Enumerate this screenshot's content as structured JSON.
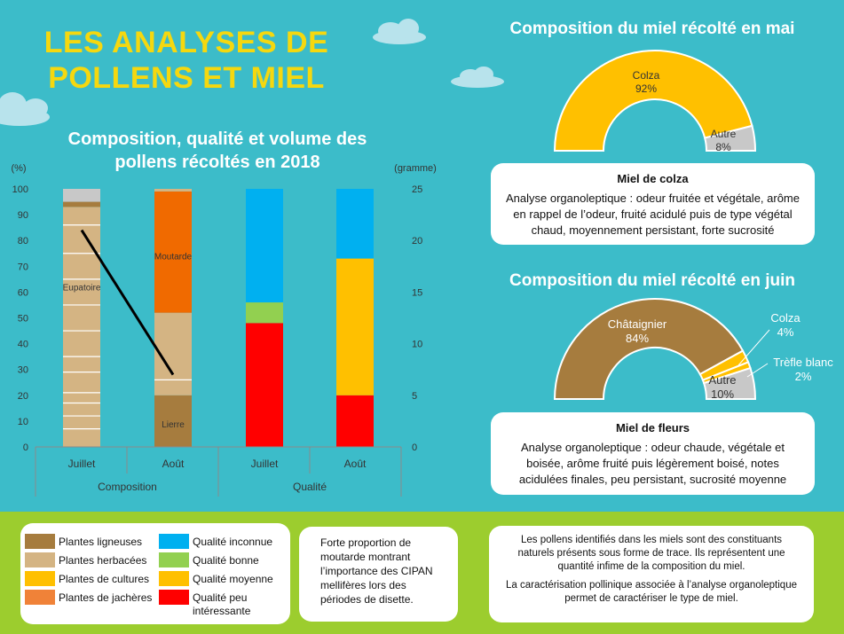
{
  "main_title": [
    "LES ANALYSES DE",
    "POLLENS ET MIEL"
  ],
  "left_chart_title": [
    "Composition, qualité et volume des",
    "pollens récoltés en 2018"
  ],
  "colors": {
    "background": "#3cbcc9",
    "title_yellow": "#f5d80f",
    "bottom_band": "#9ccd2e",
    "ligneuses": "#a67c3e",
    "herbacees": "#d4b483",
    "cultures": "#ffc000",
    "jacheres": "#f08238",
    "autre": "#c8c8c8",
    "q_inconnue": "#00b0f0",
    "q_bonne": "#92d050",
    "q_moyenne": "#ffc000",
    "q_peu": "#ff0000",
    "moutarde": "#f06a00"
  },
  "chart_data": [
    {
      "type": "bar",
      "stacked": true,
      "ylabel_left": "(%)",
      "ylabel_right": "(gramme)",
      "ylim": [
        0,
        100
      ],
      "ylim_right": [
        0,
        25
      ],
      "yticks_left": [
        "0",
        "10",
        "20",
        "30",
        "40",
        "50",
        "60",
        "70",
        "80",
        "90",
        "100"
      ],
      "yticks_right": [
        "0",
        "5",
        "10",
        "15",
        "20",
        "25"
      ],
      "categories": [
        "Juillet",
        "Août",
        "Juillet",
        "Août"
      ],
      "groups": [
        {
          "label": "Composition",
          "span": [
            0,
            1
          ]
        },
        {
          "label": "Qualité",
          "span": [
            2,
            3
          ]
        }
      ],
      "stacks": [
        {
          "segments": [
            {
              "color_key": "herbacees",
              "value": 93,
              "divisions": [
                7,
                12,
                17,
                21,
                29,
                35,
                45,
                55,
                65,
                75,
                86
              ]
            },
            {
              "color_key": "ligneuses",
              "value": 2
            },
            {
              "color_key": "autre",
              "value": 5
            }
          ],
          "labels": [
            {
              "text": "Eupatoire",
              "at": 62
            }
          ]
        },
        {
          "segments": [
            {
              "color_key": "ligneuses",
              "value": 20
            },
            {
              "color_key": "herbacees",
              "value": 32,
              "divisions": [
                26
              ]
            },
            {
              "color_key": "moutarde",
              "value": 47
            },
            {
              "color_key": "herbacees",
              "value": 1
            }
          ],
          "labels": [
            {
              "text": "Lierre",
              "at": 9
            },
            {
              "text": "Moutarde",
              "at": 74
            }
          ]
        },
        {
          "segments": [
            {
              "color_key": "q_peu",
              "value": 48
            },
            {
              "color_key": "q_bonne",
              "value": 8
            },
            {
              "color_key": "q_inconnue",
              "value": 44
            }
          ],
          "labels": []
        },
        {
          "segments": [
            {
              "color_key": "q_peu",
              "value": 20
            },
            {
              "color_key": "q_moyenne",
              "value": 53
            },
            {
              "color_key": "q_inconnue",
              "value": 27
            }
          ],
          "labels": []
        }
      ],
      "line_series": {
        "axis": "right",
        "categories": [
          "Juillet",
          "Août"
        ],
        "values": [
          21,
          7
        ]
      },
      "legend": [
        {
          "label": "Plantes ligneuses",
          "color_key": "ligneuses"
        },
        {
          "label": "Plantes herbacées",
          "color_key": "herbacees"
        },
        {
          "label": "Plantes de cultures",
          "color_key": "cultures"
        },
        {
          "label": "Plantes de jachères",
          "color_key": "jacheres"
        },
        {
          "label": "Qualité inconnue",
          "color_key": "q_inconnue"
        },
        {
          "label": "Qualité bonne",
          "color_key": "q_bonne"
        },
        {
          "label": "Qualité moyenne",
          "color_key": "q_moyenne"
        },
        {
          "label": "Qualité peu intéressante",
          "color_key": "q_peu"
        }
      ]
    },
    {
      "type": "pie",
      "half": true,
      "title": "Composition du miel récolté en mai",
      "slices": [
        {
          "name": "Colza",
          "value": 92,
          "label": "92%",
          "color_key": "cultures"
        },
        {
          "name": "Autre",
          "value": 8,
          "label": "8%",
          "color_key": "autre"
        }
      ]
    },
    {
      "type": "pie",
      "half": true,
      "title": "Composition du miel récolté en juin",
      "slices": [
        {
          "name": "Châtaignier",
          "value": 84,
          "label": "84%",
          "color_key": "ligneuses"
        },
        {
          "name": "Colza",
          "value": 4,
          "label": "4%",
          "color_key": "cultures"
        },
        {
          "name": "Trèfle blanc",
          "value": 2,
          "label": "2%",
          "color_key": "cultures"
        },
        {
          "name": "Autre",
          "value": 10,
          "label": "10%",
          "color_key": "autre"
        }
      ]
    }
  ],
  "card_colza": {
    "title": "Miel de colza",
    "body": "Analyse organoleptique : odeur fruitée et végétale, arôme en rappel de l’odeur, fruité acidulé puis de type végétal chaud, moyennement persistant, forte sucrosité"
  },
  "card_fleurs": {
    "title": "Miel de fleurs",
    "body": "Analyse organoleptique : odeur chaude, végétale et boisée, arôme fruité puis légèrement boisé, notes acidulées finales, peu persistant, sucrosité moyenne"
  },
  "note_moutarde": "Forte proportion de moutarde montrant l’importance des CIPAN mellifères lors des périodes de disette.",
  "note_pollens": [
    "Les pollens identifiés dans les miels sont des constituants naturels présents sous forme de trace.  Ils représentent une quantité infime de la composition du miel.",
    "La caractérisation pollinique associée à l’analyse organoleptique permet de caractériser le type de miel."
  ]
}
